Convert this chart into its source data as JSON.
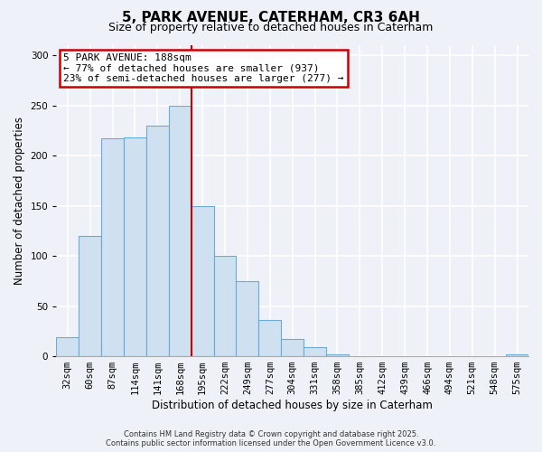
{
  "title": "5, PARK AVENUE, CATERHAM, CR3 6AH",
  "subtitle": "Size of property relative to detached houses in Caterham",
  "xlabel": "Distribution of detached houses by size in Caterham",
  "ylabel": "Number of detached properties",
  "bar_labels": [
    "32sqm",
    "60sqm",
    "87sqm",
    "114sqm",
    "141sqm",
    "168sqm",
    "195sqm",
    "222sqm",
    "249sqm",
    "277sqm",
    "304sqm",
    "331sqm",
    "358sqm",
    "385sqm",
    "412sqm",
    "439sqm",
    "466sqm",
    "494sqm",
    "521sqm",
    "548sqm",
    "575sqm"
  ],
  "bar_values": [
    19,
    120,
    217,
    218,
    230,
    250,
    150,
    100,
    75,
    36,
    17,
    9,
    2,
    0,
    0,
    0,
    0,
    0,
    0,
    0,
    2
  ],
  "bar_color": "#cfe0f0",
  "bar_edge_color": "#6aaad4",
  "vline_x": 6.0,
  "vline_color": "#cc0000",
  "annotation_text": "5 PARK AVENUE: 188sqm\n← 77% of detached houses are smaller (937)\n23% of semi-detached houses are larger (277) →",
  "annotation_box_color": "#ffffff",
  "annotation_box_edge": "#cc0000",
  "ylim": [
    0,
    310
  ],
  "yticks": [
    0,
    50,
    100,
    150,
    200,
    250,
    300
  ],
  "footer1": "Contains HM Land Registry data © Crown copyright and database right 2025.",
  "footer2": "Contains public sector information licensed under the Open Government Licence v3.0.",
  "bg_color": "#eef2f8",
  "plot_bg_color": "#eef2f8",
  "grid_color": "#ffffff",
  "title_fontsize": 11,
  "subtitle_fontsize": 9,
  "label_fontsize": 8.5,
  "tick_fontsize": 7.5,
  "annot_fontsize": 8,
  "footer_fontsize": 6
}
